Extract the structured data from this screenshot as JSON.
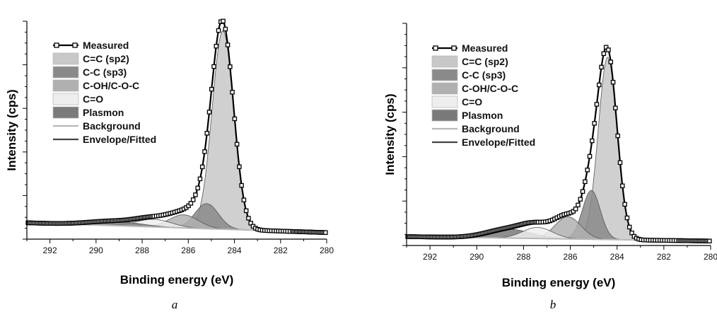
{
  "chart_data": [
    {
      "type": "area",
      "caption": "a",
      "xlabel": "Binding energy (eV)",
      "ylabel": "Intensity (cps)",
      "xlim": [
        293,
        280
      ],
      "x_reversed": true,
      "ylim": [
        0,
        1.0
      ],
      "x_ticks": [
        292,
        290,
        288,
        286,
        284,
        282,
        280
      ],
      "legend_position": "top-left",
      "legend": [
        {
          "label": "Measured",
          "kind": "line-marker",
          "color": "#000000"
        },
        {
          "label": "C=C (sp2)",
          "kind": "patch",
          "color": "#c8c8c8"
        },
        {
          "label": "C-C (sp3)",
          "kind": "patch",
          "color": "#8a8a8a"
        },
        {
          "label": "C-OH/C-O-C",
          "kind": "patch",
          "color": "#b0b0b0"
        },
        {
          "label": "C=O",
          "kind": "patch",
          "color": "#eeeeee"
        },
        {
          "label": "Plasmon",
          "kind": "patch",
          "color": "#7a7a7a"
        },
        {
          "label": "Background",
          "kind": "line",
          "color": "#b8b8b8"
        },
        {
          "label": "Envelope/Fitted",
          "kind": "line",
          "color": "#444444"
        }
      ],
      "baseline": {
        "left": 0.075,
        "right": 0.03
      },
      "components": [
        {
          "name": "C=C (sp2)",
          "center": 284.5,
          "height": 0.91,
          "fwhm": 1.1,
          "color": "#c8c8c8"
        },
        {
          "name": "C-C (sp3)",
          "center": 285.2,
          "height": 0.115,
          "fwhm": 1.2,
          "color": "#8a8a8a"
        },
        {
          "name": "C-OH/C-O-C",
          "center": 286.2,
          "height": 0.06,
          "fwhm": 1.5,
          "color": "#b0b0b0"
        },
        {
          "name": "C=O",
          "center": 287.5,
          "height": 0.035,
          "fwhm": 1.8,
          "color": "#eeeeee"
        },
        {
          "name": "Plasmon",
          "center": 289.2,
          "height": 0.02,
          "fwhm": 2.6,
          "color": "#7a7a7a"
        }
      ]
    },
    {
      "type": "area",
      "caption": "b",
      "xlabel": "Binding energy (eV)",
      "ylabel": "Intensity (cps)",
      "xlim": [
        293,
        280
      ],
      "x_reversed": true,
      "ylim": [
        0,
        1.0
      ],
      "x_ticks": [
        292,
        290,
        288,
        286,
        284,
        282,
        280
      ],
      "legend_position": "top-left",
      "legend": [
        {
          "label": "Measured",
          "kind": "line-marker",
          "color": "#000000"
        },
        {
          "label": "C=C (sp2)",
          "kind": "patch",
          "color": "#c8c8c8"
        },
        {
          "label": "C-C (sp3)",
          "kind": "patch",
          "color": "#8a8a8a"
        },
        {
          "label": "C-OH/C-O-C",
          "kind": "patch",
          "color": "#b0b0b0"
        },
        {
          "label": "C=O",
          "kind": "patch",
          "color": "#eeeeee"
        },
        {
          "label": "Plasmon",
          "kind": "patch",
          "color": "#7a7a7a"
        },
        {
          "label": "Background",
          "kind": "line",
          "color": "#b8b8b8"
        },
        {
          "label": "Envelope/Fitted",
          "kind": "line",
          "color": "#444444"
        }
      ],
      "baseline": {
        "left": 0.04,
        "right": 0.02
      },
      "components": [
        {
          "name": "C=C (sp2)",
          "center": 284.4,
          "height": 0.82,
          "fwhm": 0.95,
          "color": "#c8c8c8"
        },
        {
          "name": "C-C (sp3)",
          "center": 285.1,
          "height": 0.22,
          "fwhm": 0.9,
          "color": "#8a8a8a"
        },
        {
          "name": "C-OH/C-O-C",
          "center": 286.1,
          "height": 0.1,
          "fwhm": 1.3,
          "color": "#b0b0b0"
        },
        {
          "name": "C=O",
          "center": 287.4,
          "height": 0.05,
          "fwhm": 1.5,
          "color": "#eeeeee"
        },
        {
          "name": "Plasmon",
          "center": 288.6,
          "height": 0.04,
          "fwhm": 2.2,
          "color": "#7a7a7a"
        }
      ]
    }
  ]
}
